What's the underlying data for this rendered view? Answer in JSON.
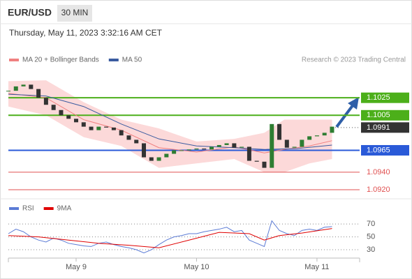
{
  "header": {
    "symbol": "EUR/USD",
    "timeframe": "30 MIN",
    "timestamp": "Thursday, May 11, 2023 3:32:16 AM CET",
    "credit": "Research © 2023 Trading Central"
  },
  "chart_data": [
    {
      "type": "candlestick",
      "up_color": "#2e7d32",
      "down_color": "#333333",
      "xlim": [
        0,
        140
      ],
      "ylim": [
        1.0912,
        1.1061
      ],
      "x": [
        0,
        3,
        6,
        9,
        12,
        15,
        18,
        21,
        24,
        27,
        30,
        33,
        36,
        39,
        42,
        45,
        48,
        51,
        54,
        57,
        60,
        63,
        66,
        69,
        72,
        75,
        78,
        81,
        84,
        87,
        90,
        93,
        96,
        99,
        102,
        105,
        108,
        111,
        114,
        117,
        120,
        123,
        126,
        129
      ],
      "values": [
        1.1033,
        1.1038,
        1.104,
        1.1035,
        1.1025,
        1.1017,
        1.1011,
        1.1005,
        1.1001,
        1.0997,
        1.0992,
        1.0988,
        1.0992,
        1.0991,
        1.0988,
        1.0982,
        1.0977,
        1.0973,
        1.0957,
        1.0953,
        1.0957,
        1.0961,
        1.0965,
        1.0965,
        1.0966,
        1.0967,
        1.0966,
        1.0969,
        1.0971,
        1.0973,
        1.0968,
        1.0969,
        1.0953,
        1.0952,
        1.0945,
        1.0995,
        1.0977,
        1.0968,
        1.0969,
        1.0977,
        1.0981,
        1.0982,
        1.0985,
        1.0992
      ],
      "bands": {
        "color": "#fcd9d9",
        "x": [
          0,
          15,
          30,
          45,
          60,
          75,
          90,
          102,
          110,
          120,
          129
        ],
        "upper": [
          1.1044,
          1.1045,
          1.102,
          1.1,
          1.099,
          1.0975,
          1.0978,
          1.0985,
          1.1,
          1.1,
          1.1
        ],
        "lower": [
          1.1015,
          1.1005,
          1.098,
          1.097,
          1.0945,
          1.095,
          1.0955,
          1.094,
          1.094,
          1.095,
          1.0955
        ]
      },
      "series": [
        {
          "name": "MA 20 + Bollinger Bands",
          "color": "#f08080",
          "x": [
            0,
            15,
            30,
            45,
            60,
            75,
            90,
            102,
            110,
            120,
            129
          ],
          "values": [
            1.103,
            1.1025,
            1.1,
            1.0988,
            1.0968,
            1.0963,
            1.0969,
            1.0962,
            1.0966,
            1.097,
            1.0976
          ]
        },
        {
          "name": "MA 50",
          "color": "#3a5ba0",
          "x": [
            0,
            15,
            30,
            45,
            60,
            75,
            90,
            102,
            115,
            129
          ],
          "values": [
            1.1029,
            1.1027,
            1.1015,
            1.0995,
            1.0978,
            1.097,
            1.0968,
            1.0966,
            1.0967,
            1.0971
          ]
        }
      ],
      "levels": [
        {
          "value": 1.1025,
          "color": "#4caf1a",
          "line": true,
          "box": true
        },
        {
          "value": 1.1005,
          "color": "#4caf1a",
          "line": true,
          "box": true
        },
        {
          "value": 1.0991,
          "color": "#333333",
          "line": false,
          "box": true
        },
        {
          "value": 1.0965,
          "color": "#2a5ad8",
          "line": true,
          "box": true
        },
        {
          "value": 1.094,
          "label": "1.0940",
          "color": "#e05050",
          "line": true,
          "box": false
        },
        {
          "value": 1.092,
          "label": "1.0920",
          "color": "#e05050",
          "line": true,
          "box": false
        }
      ]
    },
    {
      "type": "line",
      "xlim": [
        0,
        140
      ],
      "ylim": [
        17,
        93
      ],
      "yticks": [
        30,
        50,
        70
      ],
      "xticks": [
        {
          "value": 27,
          "label": "May 9"
        },
        {
          "value": 75,
          "label": "May 10"
        },
        {
          "value": 123,
          "label": "May 11"
        }
      ],
      "x": [
        0,
        3,
        6,
        9,
        12,
        15,
        18,
        21,
        24,
        27,
        30,
        33,
        36,
        39,
        42,
        45,
        48,
        51,
        54,
        57,
        60,
        63,
        66,
        69,
        72,
        75,
        78,
        81,
        84,
        87,
        90,
        93,
        96,
        99,
        102,
        105,
        108,
        111,
        114,
        117,
        120,
        123,
        126,
        129
      ],
      "series": [
        {
          "name": "RSI",
          "color": "#5b7bd5",
          "values": [
            55,
            62,
            58,
            50,
            45,
            42,
            48,
            45,
            40,
            38,
            36,
            35,
            40,
            42,
            38,
            35,
            33,
            30,
            25,
            30,
            38,
            45,
            50,
            52,
            55,
            55,
            58,
            60,
            62,
            65,
            58,
            60,
            45,
            40,
            35,
            75,
            60,
            55,
            52,
            60,
            62,
            60,
            65,
            66
          ]
        },
        {
          "name": "9MA",
          "color": "#e00000",
          "x": [
            0,
            12,
            24,
            36,
            48,
            60,
            72,
            84,
            96,
            102,
            108,
            117,
            129
          ],
          "values": [
            52,
            50,
            45,
            40,
            37,
            33,
            45,
            57,
            55,
            45,
            52,
            56,
            63
          ]
        }
      ]
    }
  ]
}
